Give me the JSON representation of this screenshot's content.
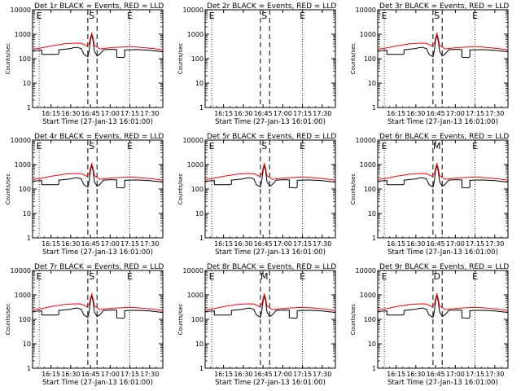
{
  "chart_data": [
    {
      "type": "line",
      "title": "Det 1r BLACK = Events, RED = LLD",
      "xlabel": "Start Time (27-Jan-13 16:01:00)",
      "ylabel": "Counts/sec",
      "letters": [
        {
          "text": "E",
          "t": "16:06"
        },
        {
          "text": "S",
          "t": "16:46"
        },
        {
          "text": "E",
          "t": "17:15"
        }
      ],
      "has_data": true
    },
    {
      "type": "line",
      "title": "Det 2r BLACK = Events, RED = LLD",
      "xlabel": "Start Time (27-Jan-13 16:01:00)",
      "ylabel": "Counts/sec",
      "letters": [
        {
          "text": "E",
          "t": "16:06"
        },
        {
          "text": "S",
          "t": "16:46"
        },
        {
          "text": "E",
          "t": "17:15"
        }
      ],
      "has_data": false
    },
    {
      "type": "line",
      "title": "Det 3r BLACK = Events, RED = LLD",
      "xlabel": "Start Time (27-Jan-13 16:01:00)",
      "ylabel": "Counts/sec",
      "letters": [
        {
          "text": "E",
          "t": "16:06"
        },
        {
          "text": "S",
          "t": "16:46"
        },
        {
          "text": "E",
          "t": "17:15"
        }
      ],
      "has_data": true
    },
    {
      "type": "line",
      "title": "Det 4r BLACK = Events, RED = LLD",
      "xlabel": "Start Time (27-Jan-13 16:01:00)",
      "ylabel": "Counts/sec",
      "letters": [
        {
          "text": "E",
          "t": "16:06"
        },
        {
          "text": "S",
          "t": "16:46"
        },
        {
          "text": "E",
          "t": "17:15"
        }
      ],
      "has_data": true
    },
    {
      "type": "line",
      "title": "Det 5r BLACK = Events, RED = LLD",
      "xlabel": "Start Time (27-Jan-13 16:01:00)",
      "ylabel": "Counts/sec",
      "letters": [
        {
          "text": "E",
          "t": "16:06"
        },
        {
          "text": "S",
          "t": "16:46"
        },
        {
          "text": "E",
          "t": "17:15"
        }
      ],
      "has_data": true
    },
    {
      "type": "line",
      "title": "Det 6r BLACK = Events, RED = LLD",
      "xlabel": "Start Time (27-Jan-13 16:01:00)",
      "ylabel": "Counts/sec",
      "letters": [
        {
          "text": "E",
          "t": "16:06"
        },
        {
          "text": "M",
          "t": "16:46"
        },
        {
          "text": "E",
          "t": "17:15"
        }
      ],
      "has_data": true
    },
    {
      "type": "line",
      "title": "Det 7r BLACK = Events, RED = LLD",
      "xlabel": "Start Time (27-Jan-13 16:01:00)",
      "ylabel": "Counts/sec",
      "letters": [
        {
          "text": "E",
          "t": "16:06"
        },
        {
          "text": "S",
          "t": "16:46"
        },
        {
          "text": "E",
          "t": "17:15"
        }
      ],
      "has_data": true
    },
    {
      "type": "line",
      "title": "Det 8r BLACK = Events, RED = LLD",
      "xlabel": "Start Time (27-Jan-13 16:01:00)",
      "ylabel": "Counts/sec",
      "letters": [
        {
          "text": "E",
          "t": "16:06"
        },
        {
          "text": "M",
          "t": "16:46"
        },
        {
          "text": "E",
          "t": "17:15"
        }
      ],
      "has_data": true
    },
    {
      "type": "line",
      "title": "Det 9r BLACK = Events, RED = LLD",
      "xlabel": "Start Time (27-Jan-13 16:01:00)",
      "ylabel": "Counts/sec",
      "letters": [
        {
          "text": "E",
          "t": "16:06"
        },
        {
          "text": "D",
          "t": "16:46"
        },
        {
          "text": "E",
          "t": "17:15"
        }
      ],
      "has_data": true
    }
  ],
  "shared": {
    "y_log": true,
    "ylim": [
      1,
      10000
    ],
    "y_ticks": [
      1,
      10,
      100,
      1000,
      10000
    ],
    "y_tick_labels": [
      "1",
      "10",
      "100",
      "1000",
      "10000"
    ],
    "xlim": [
      "16:01",
      "17:40"
    ],
    "x_ticks": [
      "16:15",
      "16:30",
      "16:45",
      "17:00",
      "17:15",
      "17:30"
    ],
    "x_tick_labels": [
      "16:15",
      "16:30",
      "16:45",
      "17:00",
      "17:15",
      "17:30"
    ],
    "dotted_lines": [
      "16:06",
      "17:15"
    ],
    "dashed_lines": [
      "16:43",
      "16:50"
    ],
    "colors": {
      "events": "#000000",
      "lld": "#ff0000"
    },
    "series": [
      {
        "name": "Events",
        "color": "#000000",
        "x": [
          "16:01",
          "16:05",
          "16:08",
          "16:08",
          "16:20",
          "16:21",
          "16:21",
          "16:30",
          "16:32",
          "16:35",
          "16:38",
          "16:40",
          "16:43",
          "16:44",
          "16:45",
          "16:46",
          "16:47",
          "16:48",
          "16:50",
          "16:52",
          "16:55",
          "17:00",
          "17:05",
          "17:05",
          "17:10",
          "17:11",
          "17:11",
          "17:20",
          "17:30",
          "17:40"
        ],
        "y": [
          210,
          215,
          220,
          150,
          150,
          160,
          230,
          260,
          280,
          290,
          260,
          150,
          120,
          210,
          550,
          950,
          550,
          200,
          130,
          150,
          230,
          240,
          235,
          115,
          110,
          120,
          225,
          235,
          220,
          190
        ]
      },
      {
        "name": "LLD",
        "color": "#ff0000",
        "x": [
          "16:01",
          "16:05",
          "16:10",
          "16:15",
          "16:20",
          "16:25",
          "16:30",
          "16:35",
          "16:38",
          "16:40",
          "16:42",
          "16:44",
          "16:45",
          "16:46",
          "16:47",
          "16:48",
          "16:50",
          "16:52",
          "16:55",
          "17:00",
          "17:05",
          "17:10",
          "17:15",
          "17:20",
          "17:30",
          "17:40"
        ],
        "y": [
          250,
          260,
          290,
          330,
          360,
          400,
          420,
          430,
          420,
          380,
          330,
          400,
          700,
          1100,
          700,
          350,
          300,
          250,
          260,
          280,
          290,
          300,
          310,
          300,
          270,
          230
        ]
      }
    ]
  }
}
